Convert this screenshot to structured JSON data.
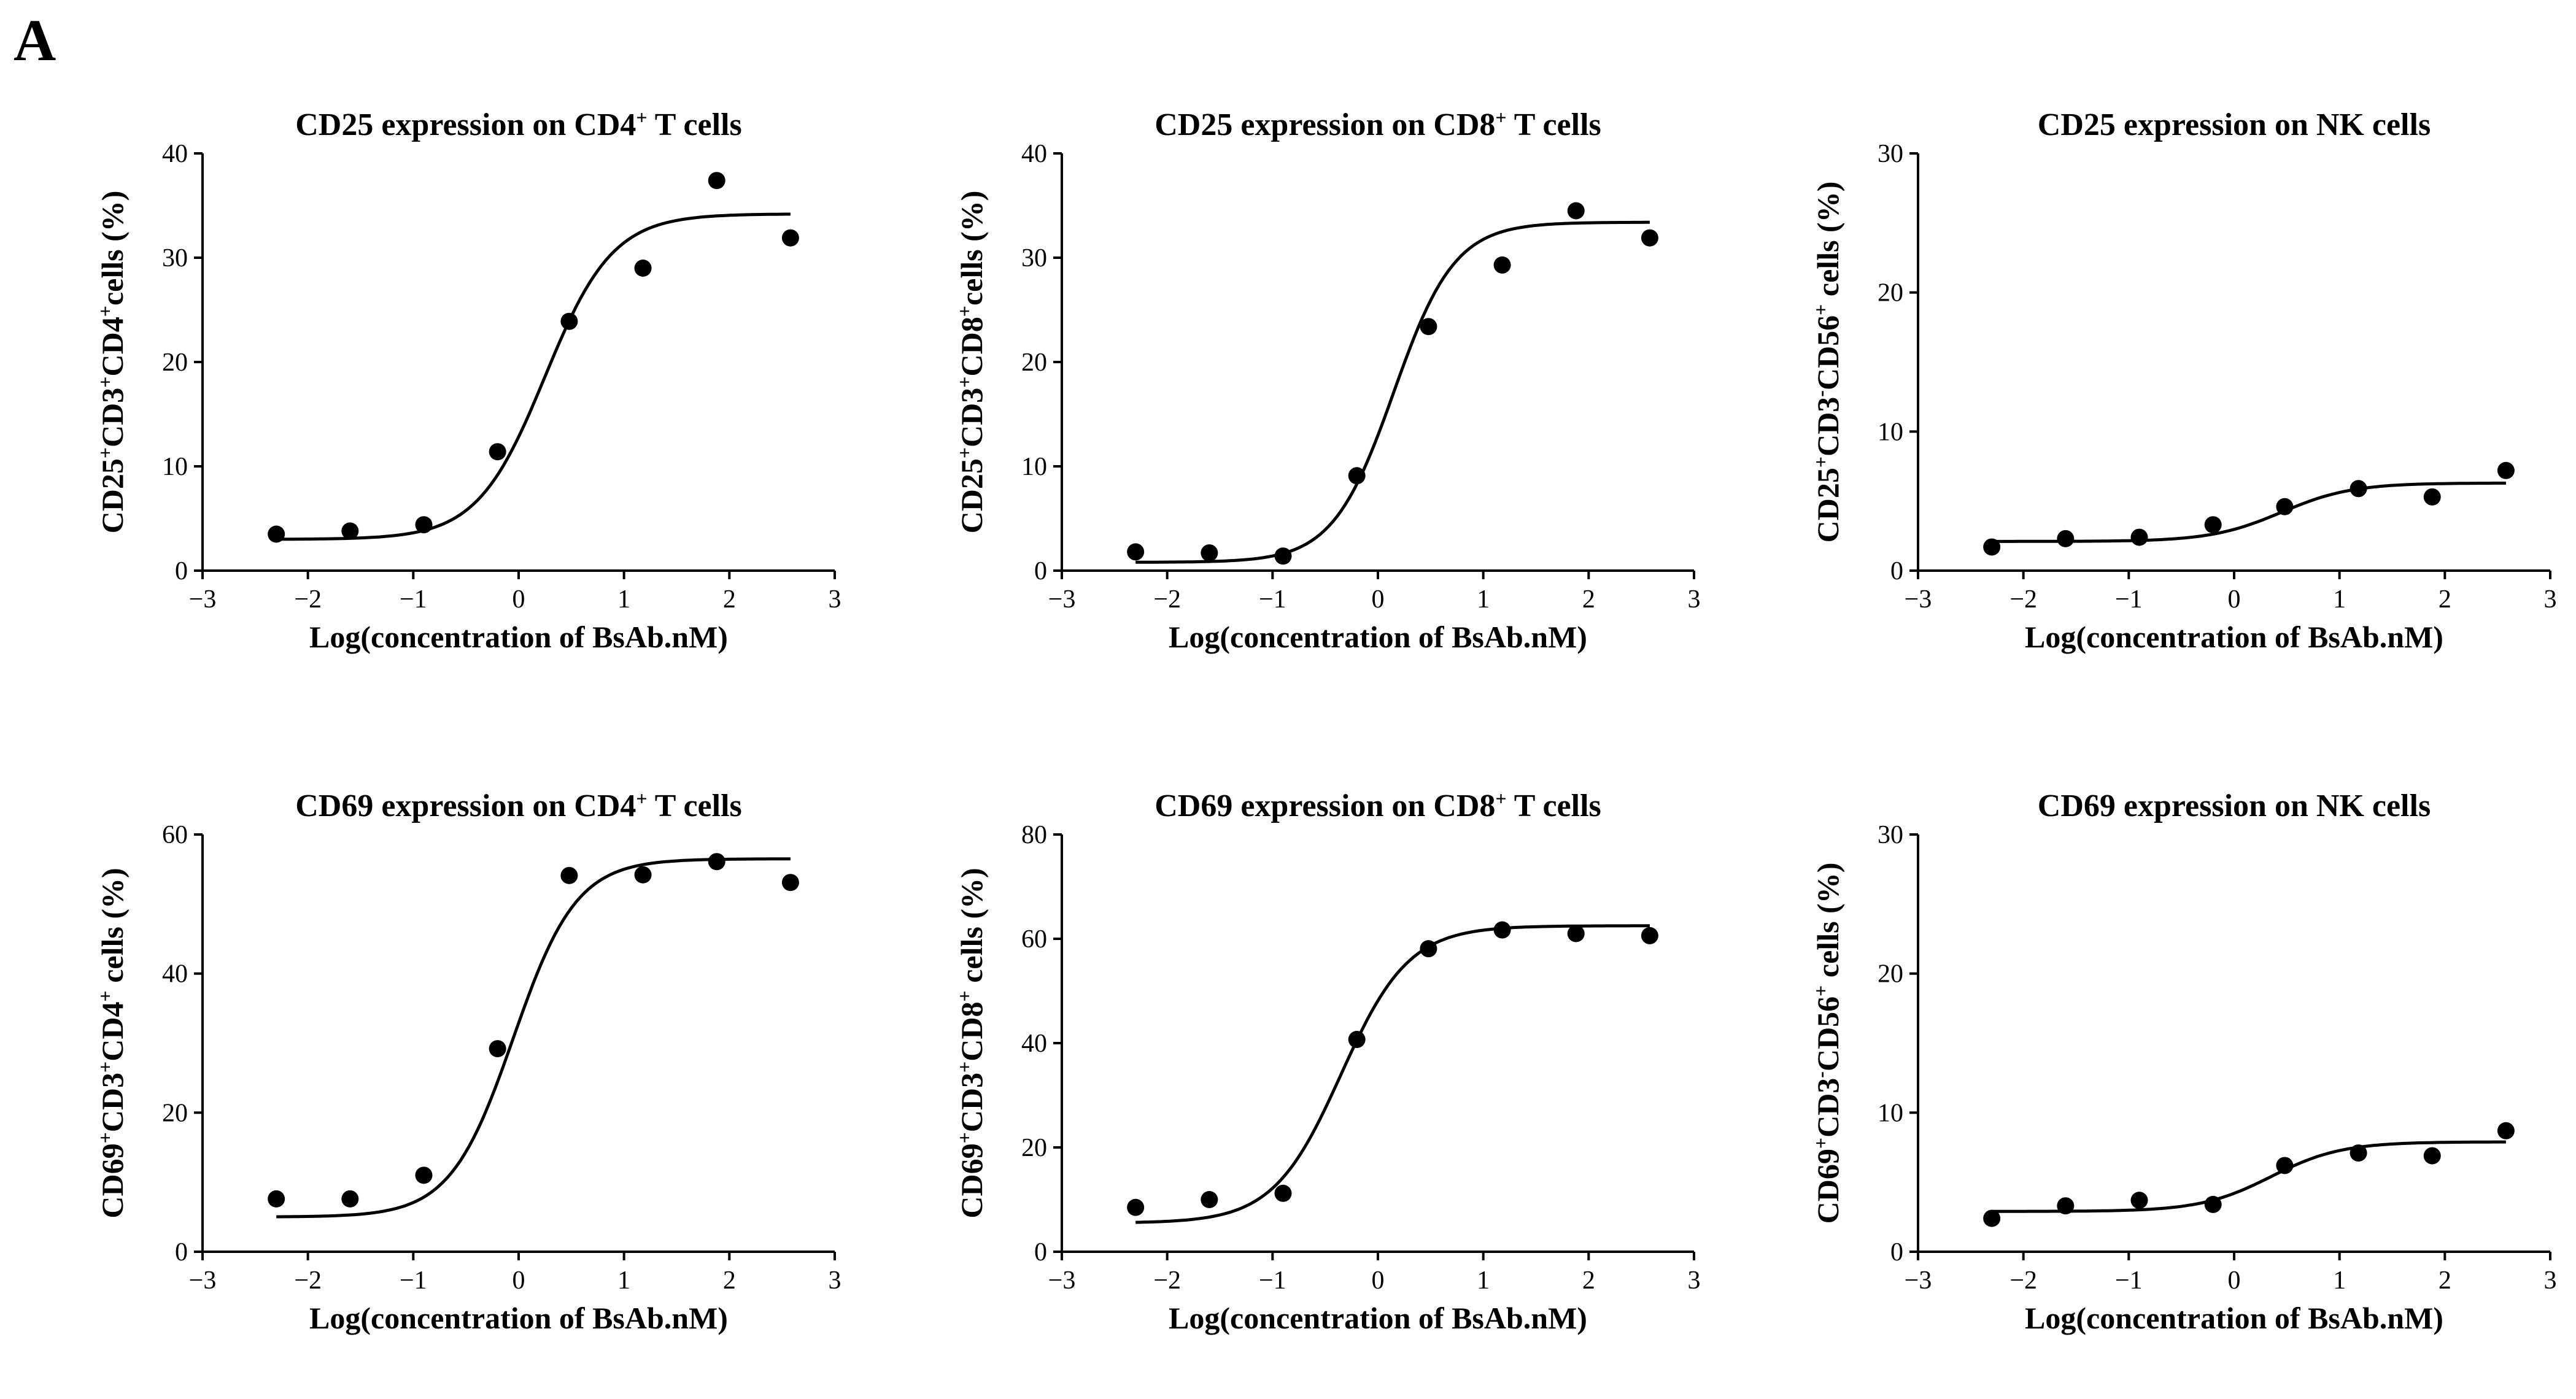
{
  "panel_label": "A",
  "chart_data": [
    {
      "type": "scatter",
      "title": "CD25 expression on CD4+ T cells",
      "title_parts": [
        {
          "t": "CD25 expression on CD4"
        },
        {
          "t": "+",
          "sup": true
        },
        {
          "t": " T cells"
        }
      ],
      "xlabel": "Log(concentration of BsAb.nM)",
      "ylabel": "CD25+CD3+CD4+cells (%)",
      "ylabel_parts": [
        {
          "t": "CD25"
        },
        {
          "t": "+",
          "sup": true
        },
        {
          "t": "CD3"
        },
        {
          "t": "+",
          "sup": true
        },
        {
          "t": "CD4"
        },
        {
          "t": "+",
          "sup": true
        },
        {
          "t": "cells (%)"
        }
      ],
      "xlim": [
        -3,
        3
      ],
      "ylim": [
        0,
        40
      ],
      "xticks": [
        -3,
        -2,
        -1,
        0,
        1,
        2,
        3
      ],
      "yticks": [
        0,
        10,
        20,
        30,
        40
      ],
      "x": [
        -2.3,
        -1.6,
        -0.9,
        -0.2,
        0.48,
        1.18,
        1.88,
        2.58
      ],
      "y": [
        3.5,
        3.8,
        4.4,
        11.4,
        23.9,
        29.0,
        37.4,
        31.9
      ],
      "fit": {
        "bottom": 3.0,
        "top": 34.2,
        "logEC50": 0.25,
        "hill": 1.35
      },
      "grid": false
    },
    {
      "type": "scatter",
      "title": "CD25 expression on CD8+ T cells",
      "title_parts": [
        {
          "t": "CD25 expression on CD8"
        },
        {
          "t": "+",
          "sup": true
        },
        {
          "t": " T cells"
        }
      ],
      "xlabel": "Log(concentration of BsAb.nM)",
      "ylabel": "CD25+CD3+CD8+cells (%)",
      "ylabel_parts": [
        {
          "t": "CD25"
        },
        {
          "t": "+",
          "sup": true
        },
        {
          "t": "CD3"
        },
        {
          "t": "+",
          "sup": true
        },
        {
          "t": "CD8"
        },
        {
          "t": "+",
          "sup": true
        },
        {
          "t": "cells (%)"
        }
      ],
      "xlim": [
        -3,
        3
      ],
      "ylim": [
        0,
        40
      ],
      "xticks": [
        -3,
        -2,
        -1,
        0,
        1,
        2,
        3
      ],
      "yticks": [
        0,
        10,
        20,
        30,
        40
      ],
      "x": [
        -2.3,
        -1.6,
        -0.9,
        -0.2,
        0.48,
        1.18,
        1.88,
        2.58
      ],
      "y": [
        1.8,
        1.7,
        1.4,
        9.1,
        23.4,
        29.3,
        34.5,
        31.9
      ],
      "fit": {
        "bottom": 0.8,
        "top": 33.4,
        "logEC50": 0.15,
        "hill": 1.5
      },
      "grid": false
    },
    {
      "type": "scatter",
      "title": "CD25 expression on NK cells",
      "title_parts": [
        {
          "t": "CD25 expression on NK cells"
        }
      ],
      "xlabel": "Log(concentration of BsAb.nM)",
      "ylabel": "CD25+CD3-CD56+ cells (%)",
      "ylabel_parts": [
        {
          "t": "CD25"
        },
        {
          "t": "+",
          "sup": true
        },
        {
          "t": "CD3"
        },
        {
          "t": "-",
          "sup": true
        },
        {
          "t": "CD56"
        },
        {
          "t": "+",
          "sup": true
        },
        {
          "t": " cells (%)"
        }
      ],
      "xlim": [
        -3,
        3
      ],
      "ylim": [
        0,
        30
      ],
      "xticks": [
        -3,
        -2,
        -1,
        0,
        1,
        2,
        3
      ],
      "yticks": [
        0,
        10,
        20,
        30
      ],
      "x": [
        -2.3,
        -1.6,
        -0.9,
        -0.2,
        0.48,
        1.18,
        1.88,
        2.58
      ],
      "y": [
        1.7,
        2.3,
        2.4,
        3.3,
        4.6,
        5.9,
        5.3,
        7.2
      ],
      "fit": {
        "bottom": 2.1,
        "top": 6.3,
        "logEC50": 0.45,
        "hill": 1.3
      },
      "grid": false
    },
    {
      "type": "scatter",
      "title": "CD69 expression on CD4+ T  cells",
      "title_parts": [
        {
          "t": "CD69 expression on CD4"
        },
        {
          "t": "+",
          "sup": true
        },
        {
          "t": " T  cells"
        }
      ],
      "xlabel": "Log(concentration of BsAb.nM)",
      "ylabel": "CD69+CD3+CD4+ cells (%)",
      "ylabel_parts": [
        {
          "t": "CD69"
        },
        {
          "t": "+",
          "sup": true
        },
        {
          "t": "CD3"
        },
        {
          "t": "+",
          "sup": true
        },
        {
          "t": "CD4"
        },
        {
          "t": "+",
          "sup": true
        },
        {
          "t": " cells (%)"
        }
      ],
      "xlim": [
        -3,
        3
      ],
      "ylim": [
        0,
        60
      ],
      "xticks": [
        -3,
        -2,
        -1,
        0,
        1,
        2,
        3
      ],
      "yticks": [
        0,
        20,
        40,
        60
      ],
      "x": [
        -2.3,
        -1.6,
        -0.9,
        -0.2,
        0.48,
        1.18,
        1.88,
        2.58
      ],
      "y": [
        7.6,
        7.6,
        11.0,
        29.2,
        54.1,
        54.2,
        56.1,
        53.1
      ],
      "fit": {
        "bottom": 5.0,
        "top": 56.5,
        "logEC50": -0.05,
        "hill": 1.45
      },
      "grid": false
    },
    {
      "type": "scatter",
      "title": "CD69 expression on CD8+ T  cells",
      "title_parts": [
        {
          "t": "CD69 expression on CD8"
        },
        {
          "t": "+",
          "sup": true
        },
        {
          "t": " T  cells"
        }
      ],
      "xlabel": "Log(concentration of BsAb.nM)",
      "ylabel": "CD69+CD3+CD8+ cells (%)",
      "ylabel_parts": [
        {
          "t": "CD69"
        },
        {
          "t": "+",
          "sup": true
        },
        {
          "t": "CD3"
        },
        {
          "t": "+",
          "sup": true
        },
        {
          "t": "CD8"
        },
        {
          "t": "+",
          "sup": true
        },
        {
          "t": " cells (%)"
        }
      ],
      "xlim": [
        -3,
        3
      ],
      "ylim": [
        0,
        80
      ],
      "xticks": [
        -3,
        -2,
        -1,
        0,
        1,
        2,
        3
      ],
      "yticks": [
        0,
        20,
        40,
        60,
        80
      ],
      "x": [
        -2.3,
        -1.6,
        -0.9,
        -0.2,
        0.48,
        1.18,
        1.88,
        2.58
      ],
      "y": [
        8.5,
        10.0,
        11.2,
        40.7,
        58.1,
        61.7,
        61.0,
        60.6
      ],
      "fit": {
        "bottom": 5.5,
        "top": 62.5,
        "logEC50": -0.35,
        "hill": 1.35
      },
      "grid": false
    },
    {
      "type": "scatter",
      "title": "CD69 expression on NK cells",
      "title_parts": [
        {
          "t": "CD69 expression on NK cells"
        }
      ],
      "xlabel": "Log(concentration of BsAb.nM)",
      "ylabel": "CD69+CD3-CD56+ cells (%)",
      "ylabel_parts": [
        {
          "t": "CD69"
        },
        {
          "t": "+",
          "sup": true
        },
        {
          "t": "CD3"
        },
        {
          "t": "-",
          "sup": true
        },
        {
          "t": "CD56"
        },
        {
          "t": "+",
          "sup": true
        },
        {
          "t": " cells (%)"
        }
      ],
      "xlim": [
        -3,
        3
      ],
      "ylim": [
        0,
        30
      ],
      "xticks": [
        -3,
        -2,
        -1,
        0,
        1,
        2,
        3
      ],
      "yticks": [
        0,
        10,
        20,
        30
      ],
      "x": [
        -2.3,
        -1.6,
        -0.9,
        -0.2,
        0.48,
        1.18,
        1.88,
        2.58
      ],
      "y": [
        2.4,
        3.3,
        3.7,
        3.4,
        6.2,
        7.1,
        6.9,
        8.7
      ],
      "fit": {
        "bottom": 2.9,
        "top": 7.9,
        "logEC50": 0.35,
        "hill": 1.3
      },
      "grid": false
    }
  ]
}
